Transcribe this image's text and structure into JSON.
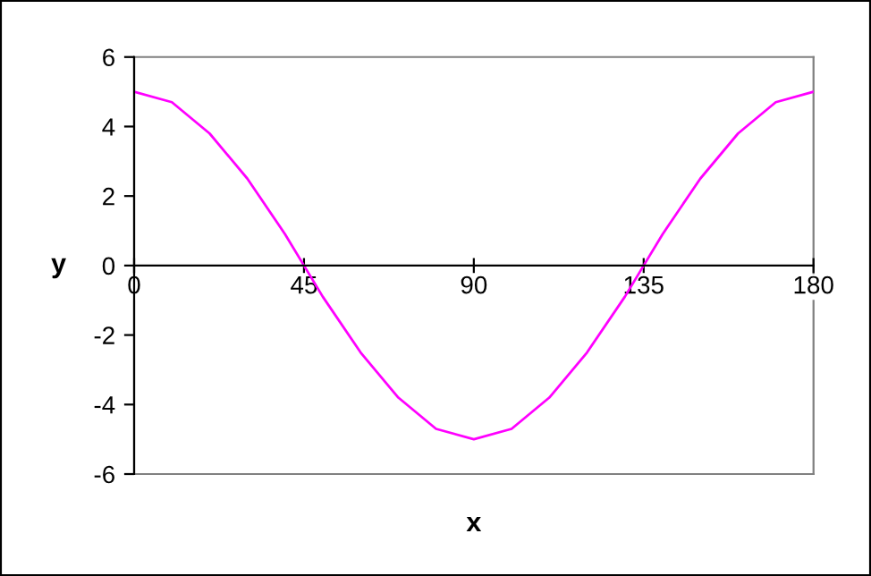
{
  "chart_data": {
    "type": "line",
    "xlabel": "x",
    "ylabel": "y",
    "x": [
      0,
      10,
      20,
      30,
      40,
      45,
      50,
      60,
      70,
      80,
      90,
      100,
      110,
      120,
      130,
      135,
      140,
      150,
      160,
      170,
      180
    ],
    "series": [
      {
        "color": "#ff00ff",
        "values": [
          5,
          4.7,
          3.8,
          2.5,
          0.9,
          0,
          -0.9,
          -2.5,
          -3.8,
          -4.7,
          -5,
          -4.7,
          -3.8,
          -2.5,
          -0.9,
          0,
          0.9,
          2.5,
          3.8,
          4.7,
          5
        ]
      }
    ],
    "xlim": [
      0,
      180
    ],
    "xticks": [
      0,
      45,
      90,
      135,
      180
    ],
    "ylim": [
      -6,
      6
    ],
    "yticks": [
      -6,
      -4,
      -2,
      0,
      2,
      4,
      6
    ],
    "grid": false,
    "marker": "none",
    "line_style": "solid"
  }
}
